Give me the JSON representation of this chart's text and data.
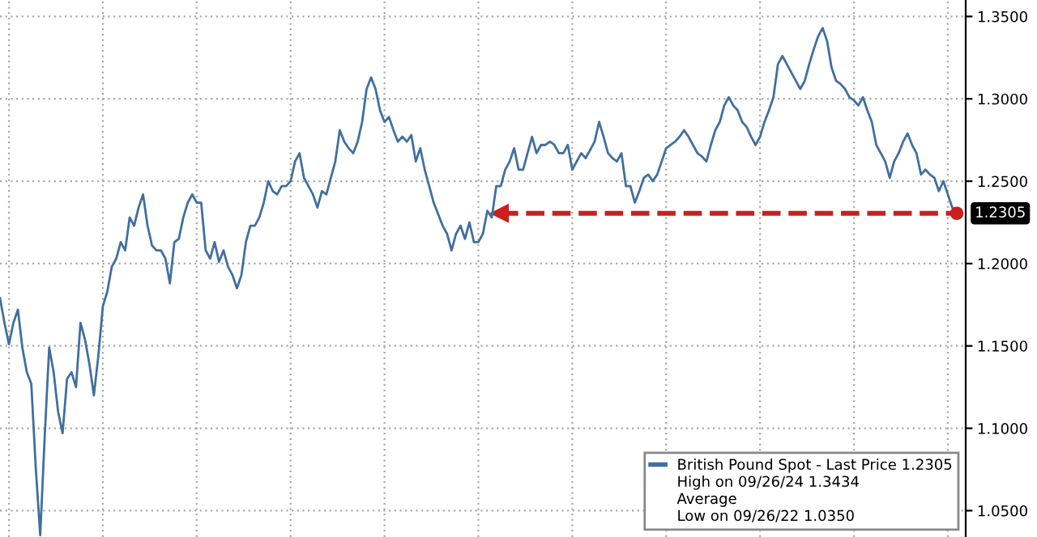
{
  "chart_data": {
    "type": "line",
    "categories": [
      null,
      null,
      null,
      null,
      null,
      null,
      null,
      null,
      null,
      null,
      null,
      null,
      null,
      null,
      null,
      null,
      null,
      null,
      null,
      null,
      null,
      null,
      null,
      null,
      null,
      null,
      null,
      null,
      null,
      null,
      null,
      null,
      null,
      null,
      null,
      null,
      null,
      null,
      null,
      null,
      null,
      null,
      null,
      null,
      null,
      null,
      null,
      null,
      null,
      null,
      null,
      null,
      null,
      null,
      null,
      null,
      null,
      null,
      null,
      null,
      null,
      null,
      null,
      null,
      null,
      null,
      null,
      null,
      null,
      null,
      null,
      null,
      null,
      null,
      null,
      null,
      null,
      null,
      null,
      null,
      null,
      null,
      null,
      null,
      null,
      null,
      null,
      null,
      null,
      null,
      null,
      null,
      null,
      null,
      null,
      null,
      null,
      null,
      null,
      null,
      null,
      null,
      null,
      null,
      null,
      null,
      null,
      null,
      null,
      null,
      null,
      null,
      null,
      null,
      null,
      null,
      null,
      null,
      null,
      null,
      null,
      null,
      null,
      null,
      null,
      null,
      null,
      null,
      null,
      null,
      null,
      null,
      null,
      null,
      null,
      null,
      null,
      null,
      null,
      null,
      null,
      null,
      null,
      null,
      null,
      null,
      null,
      null,
      null,
      null,
      null,
      null,
      null,
      null,
      null,
      null,
      null,
      null,
      null,
      null,
      null,
      null,
      null,
      null,
      null,
      null,
      null,
      null,
      null,
      null,
      null,
      null,
      null,
      null,
      null,
      null,
      null,
      null,
      null,
      null,
      null,
      null,
      null,
      null,
      null,
      null,
      null,
      null,
      null,
      null,
      null,
      null,
      null,
      null,
      null,
      null,
      null,
      null,
      null,
      null,
      null,
      null,
      null,
      null,
      null,
      null,
      null,
      null,
      null,
      null,
      null,
      null,
      null,
      null,
      null
    ],
    "series": [
      {
        "name": "British Pound Spot - Last Price 1.2305",
        "color": "#3f6f9f",
        "values": [
          1.179,
          1.164,
          1.151,
          1.164,
          1.172,
          1.149,
          1.134,
          1.127,
          1.076,
          1.035,
          1.095,
          1.149,
          1.134,
          1.11,
          1.097,
          1.13,
          1.134,
          1.125,
          1.164,
          1.154,
          1.139,
          1.12,
          1.144,
          1.174,
          1.183,
          1.198,
          1.203,
          1.213,
          1.208,
          1.228,
          1.223,
          1.234,
          1.242,
          1.223,
          1.211,
          1.208,
          1.208,
          1.203,
          1.188,
          1.213,
          1.215,
          1.228,
          1.237,
          1.242,
          1.237,
          1.237,
          1.208,
          1.203,
          1.213,
          1.201,
          1.208,
          1.198,
          1.193,
          1.185,
          1.193,
          1.213,
          1.223,
          1.223,
          1.228,
          1.237,
          1.25,
          1.244,
          1.242,
          1.247,
          1.247,
          1.25,
          1.262,
          1.267,
          1.252,
          1.247,
          1.242,
          1.234,
          1.244,
          1.242,
          1.252,
          1.262,
          1.281,
          1.274,
          1.27,
          1.267,
          1.274,
          1.286,
          1.306,
          1.313,
          1.306,
          1.293,
          1.286,
          1.289,
          1.281,
          1.274,
          1.277,
          1.274,
          1.278,
          1.262,
          1.27,
          1.257,
          1.247,
          1.237,
          1.23,
          1.223,
          1.218,
          1.208,
          1.218,
          1.223,
          1.215,
          1.225,
          1.213,
          1.213,
          1.218,
          1.232,
          1.228,
          1.247,
          1.247,
          1.257,
          1.262,
          1.27,
          1.257,
          1.257,
          1.267,
          1.277,
          1.267,
          1.272,
          1.272,
          1.274,
          1.272,
          1.267,
          1.267,
          1.272,
          1.257,
          1.262,
          1.267,
          1.264,
          1.269,
          1.274,
          1.286,
          1.277,
          1.267,
          1.264,
          1.262,
          1.267,
          1.247,
          1.247,
          1.237,
          1.244,
          1.252,
          1.254,
          1.25,
          1.254,
          1.262,
          1.27,
          1.272,
          1.274,
          1.277,
          1.281,
          1.277,
          1.272,
          1.267,
          1.265,
          1.262,
          1.272,
          1.281,
          1.286,
          1.296,
          1.301,
          1.296,
          1.293,
          1.286,
          1.283,
          1.277,
          1.272,
          1.277,
          1.286,
          1.293,
          1.301,
          1.321,
          1.326,
          1.321,
          1.316,
          1.311,
          1.306,
          1.311,
          1.321,
          1.33,
          1.338,
          1.343,
          1.335,
          1.319,
          1.311,
          1.309,
          1.306,
          1.301,
          1.299,
          1.296,
          1.301,
          1.293,
          1.286,
          1.272,
          1.267,
          1.262,
          1.252,
          1.262,
          1.267,
          1.274,
          1.279,
          1.272,
          1.267,
          1.254,
          1.257,
          1.254,
          1.252,
          1.244,
          1.25,
          1.242,
          1.234,
          1.2305
        ]
      }
    ],
    "ylim": [
      1.034,
      1.36
    ],
    "yticks": [
      {
        "value": 1.05,
        "label": "1.0500"
      },
      {
        "value": 1.1,
        "label": "1.1000"
      },
      {
        "value": 1.15,
        "label": "1.1500"
      },
      {
        "value": 1.2,
        "label": "1.2000"
      },
      {
        "value": 1.25,
        "label": "1.2500"
      },
      {
        "value": 1.3,
        "label": "1.3000"
      },
      {
        "value": 1.35,
        "label": "1.3500"
      }
    ],
    "ref_lines": [
      {
        "axis": "y",
        "value": 1.2305,
        "label": "1.2305",
        "color": "#cc1f1f",
        "line_style": "dashed"
      }
    ],
    "annotations": [
      "High on 09/26/24 1.3434",
      "Average",
      "Low on 09/26/22 1.0350"
    ],
    "grid": true,
    "legend": "bottom right",
    "tick_labels": "y",
    "line_style": "solid",
    "marker": "none"
  }
}
